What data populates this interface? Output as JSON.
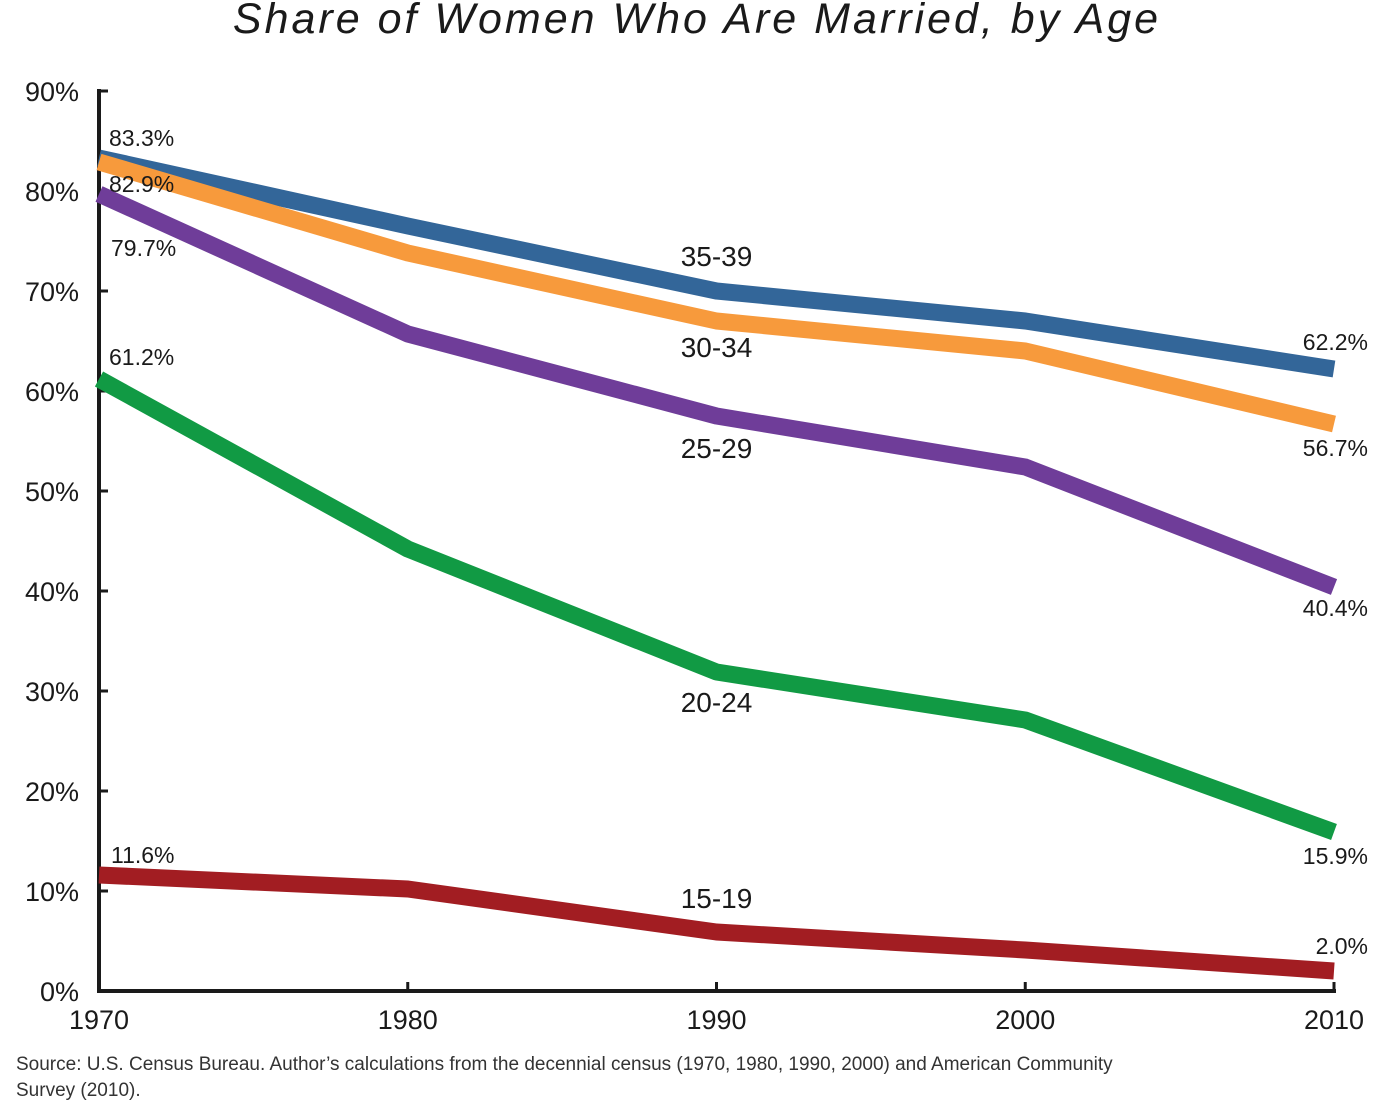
{
  "source": {
    "line1": "Source: U.S. Census Bureau. Author’s calculations from the decennial census (1970, 1980, 1990, 2000) and American Community",
    "line2": "Survey (2010)."
  },
  "chart_data": {
    "type": "line",
    "title": "Share of Women Who Are Married, by Age",
    "xlabel": "",
    "ylabel": "",
    "x": [
      1970,
      1980,
      1990,
      2000,
      2010
    ],
    "x_tick_labels": [
      "1970",
      "1980",
      "1990",
      "2000",
      "2010"
    ],
    "ylim": [
      0,
      90
    ],
    "y_ticks": [
      0,
      10,
      20,
      30,
      40,
      50,
      60,
      70,
      80,
      90
    ],
    "y_tick_labels": [
      "0%",
      "10%",
      "20%",
      "30%",
      "40%",
      "50%",
      "60%",
      "70%",
      "80%",
      "90%"
    ],
    "grid": false,
    "legend": "none (series labeled inline)",
    "series": [
      {
        "name": "35-39",
        "color": "#336699",
        "values": [
          83.3,
          76.5,
          70.0,
          67.0,
          62.2
        ],
        "start_label": "83.3%",
        "end_label": "62.2%"
      },
      {
        "name": "30-34",
        "color": "#f79a3c",
        "values": [
          82.9,
          73.8,
          67.0,
          64.0,
          56.7
        ],
        "start_label": "82.9%",
        "end_label": "56.7%"
      },
      {
        "name": "25-29",
        "color": "#6f3d99",
        "values": [
          79.7,
          65.7,
          57.5,
          52.4,
          40.4
        ],
        "start_label": "79.7%",
        "end_label": "40.4%"
      },
      {
        "name": "20-24",
        "color": "#119a44",
        "values": [
          61.2,
          44.2,
          31.9,
          27.1,
          15.9
        ],
        "start_label": "61.2%",
        "end_label": "15.9%"
      },
      {
        "name": "15-19",
        "color": "#a21d22",
        "values": [
          11.6,
          10.2,
          5.9,
          4.1,
          2.0
        ],
        "start_label": "11.6%",
        "end_label": "2.0%"
      }
    ]
  }
}
